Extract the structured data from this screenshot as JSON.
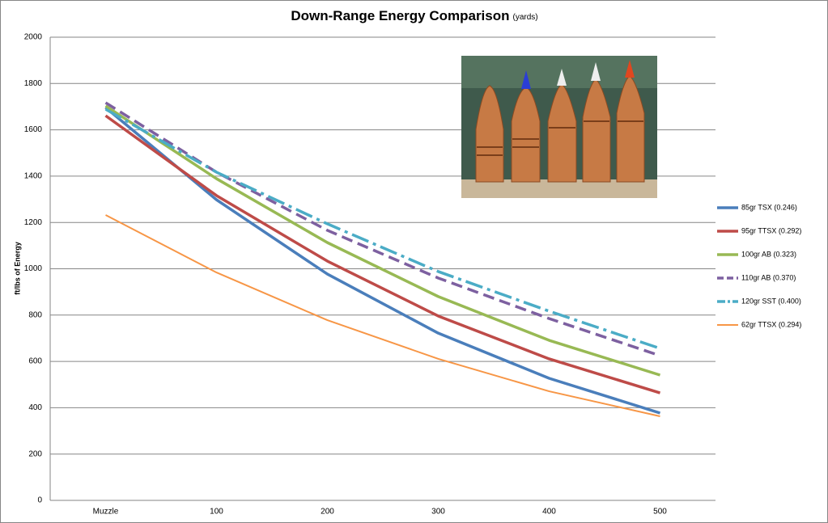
{
  "chart_data": {
    "type": "line",
    "title": "Down-Range Energy Comparison",
    "subtitle": "(yards)",
    "y_label": "ft/lbs of Energy",
    "categories": [
      "Muzzle",
      "100",
      "200",
      "300",
      "400",
      "500"
    ],
    "series": [
      {
        "name": "85gr TSX (0.246)",
        "color": "#4a7ebb",
        "dash": "solid",
        "width": 3.5,
        "values": [
          1696,
          1298,
          977,
          722,
          527,
          377
        ]
      },
      {
        "name": "95gr TTSX (0.292)",
        "color": "#be4b48",
        "dash": "solid",
        "width": 3.5,
        "values": [
          1661,
          1316,
          1033,
          796,
          611,
          464
        ]
      },
      {
        "name": "100gr AB (0.323)",
        "color": "#98b954",
        "dash": "solid",
        "width": 3.5,
        "values": [
          1703,
          1389,
          1113,
          880,
          691,
          541
        ]
      },
      {
        "name": "110gr AB (0.370)",
        "color": "#7d60a0",
        "dash": "dash",
        "width": 3.5,
        "values": [
          1717,
          1417,
          1166,
          960,
          785,
          625
        ]
      },
      {
        "name": "120gr SST (0.400)",
        "color": "#4bacc6",
        "dash": "dashdot",
        "width": 3.5,
        "values": [
          1689,
          1417,
          1194,
          988,
          817,
          656
        ]
      },
      {
        "name": "62gr TTSX (0.294)",
        "color": "#f79646",
        "dash": "solid",
        "width": 2,
        "values": [
          1232,
          984,
          778,
          611,
          471,
          363
        ]
      }
    ],
    "ylim": [
      0,
      2000
    ],
    "yticks": [
      0,
      200,
      400,
      600,
      800,
      1000,
      1200,
      1400,
      1600,
      1800,
      2000
    ],
    "grid": true,
    "legend": "right"
  }
}
